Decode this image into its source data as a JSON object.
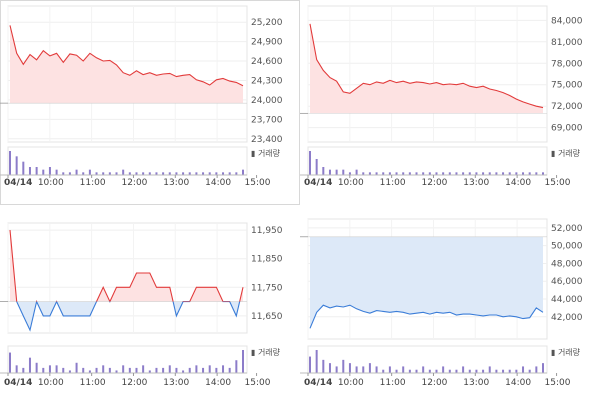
{
  "chart_data": [
    {
      "type": "line",
      "baseline": 23950,
      "ylim": [
        23350,
        25450
      ],
      "yticks": [
        "25,200",
        "24,900",
        "24,600",
        "24,300",
        "24,000",
        "23,700",
        "23,400"
      ],
      "ytick_values": [
        25200,
        24900,
        24600,
        24300,
        24000,
        23700,
        23400
      ],
      "x": [
        "09:00",
        "09:10",
        "09:20",
        "09:30",
        "09:40",
        "09:50",
        "10:00",
        "10:10",
        "10:20",
        "10:30",
        "10:40",
        "10:50",
        "11:00",
        "11:10",
        "11:20",
        "11:30",
        "11:40",
        "11:50",
        "12:00",
        "12:10",
        "12:20",
        "12:30",
        "12:40",
        "12:50",
        "13:00",
        "13:10",
        "13:20",
        "13:30",
        "13:40",
        "13:50",
        "14:00",
        "14:10",
        "14:20",
        "14:30",
        "14:40",
        "14:50"
      ],
      "values": [
        25150,
        24720,
        24550,
        24700,
        24620,
        24760,
        24680,
        24720,
        24580,
        24710,
        24690,
        24600,
        24720,
        24650,
        24600,
        24610,
        24540,
        24420,
        24380,
        24450,
        24390,
        24420,
        24380,
        24400,
        24410,
        24360,
        24380,
        24390,
        24310,
        24280,
        24230,
        24310,
        24330,
        24290,
        24270,
        24220
      ],
      "volume": [
        9,
        7,
        5,
        3,
        3,
        2,
        3,
        2,
        1,
        1,
        2,
        1,
        2,
        1,
        1,
        1,
        1,
        2,
        1,
        1,
        1,
        1,
        1,
        1,
        1,
        1,
        1,
        1,
        1,
        1,
        1,
        1,
        1,
        1,
        1,
        2
      ],
      "xticks": [
        "04/14",
        "10:00",
        "11:00",
        "12:00",
        "13:00",
        "14:00",
        "15:00"
      ],
      "volume_label": "거래량",
      "colors": {
        "up_line": "#e23b3b",
        "up_fill": "#fde2e2",
        "down_line": "#3b7dd8",
        "down_fill": "#dde9f8",
        "volume": "#8c7cc9"
      }
    },
    {
      "type": "line",
      "baseline": 71000,
      "ylim": [
        67000,
        86000
      ],
      "yticks": [
        "84,000",
        "81,000",
        "78,000",
        "75,000",
        "72,000",
        "69,000"
      ],
      "ytick_values": [
        84000,
        81000,
        78000,
        75000,
        72000,
        69000
      ],
      "x": [
        "09:00",
        "09:10",
        "09:20",
        "09:30",
        "09:40",
        "09:50",
        "10:00",
        "10:10",
        "10:20",
        "10:30",
        "10:40",
        "10:50",
        "11:00",
        "11:10",
        "11:20",
        "11:30",
        "11:40",
        "11:50",
        "12:00",
        "12:10",
        "12:20",
        "12:30",
        "12:40",
        "12:50",
        "13:00",
        "13:10",
        "13:20",
        "13:30",
        "13:40",
        "13:50",
        "14:00",
        "14:10",
        "14:20",
        "14:30",
        "14:40",
        "14:50"
      ],
      "values": [
        83500,
        78500,
        77000,
        76000,
        75500,
        74000,
        73800,
        74500,
        75200,
        75000,
        75400,
        75200,
        75600,
        75300,
        75500,
        75200,
        75400,
        75300,
        75100,
        75300,
        75000,
        75100,
        75000,
        75200,
        74800,
        74600,
        74800,
        74400,
        74200,
        73900,
        73500,
        73000,
        72600,
        72300,
        72000,
        71800
      ],
      "volume": [
        9,
        6,
        3,
        2,
        2,
        2,
        1,
        2,
        1,
        1,
        1,
        1,
        1,
        1,
        1,
        1,
        1,
        1,
        1,
        1,
        1,
        1,
        1,
        1,
        1,
        1,
        1,
        1,
        1,
        1,
        1,
        1,
        1,
        1,
        1,
        1
      ],
      "xticks": [
        "04/14",
        "10:00",
        "11:00",
        "12:00",
        "13:00",
        "14:00",
        "15:00"
      ],
      "volume_label": "거래량",
      "colors": {
        "up_line": "#e23b3b",
        "up_fill": "#fde2e2",
        "down_line": "#3b7dd8",
        "down_fill": "#dde9f8",
        "volume": "#8c7cc9"
      }
    },
    {
      "type": "line",
      "baseline": 11700,
      "ylim": [
        11590,
        11975
      ],
      "yticks": [
        "11,950",
        "11,850",
        "11,750",
        "11,650"
      ],
      "ytick_values": [
        11950,
        11850,
        11750,
        11650
      ],
      "x": [
        "09:00",
        "09:10",
        "09:20",
        "09:30",
        "09:40",
        "09:50",
        "10:00",
        "10:10",
        "10:20",
        "10:30",
        "10:40",
        "10:50",
        "11:00",
        "11:10",
        "11:20",
        "11:30",
        "11:40",
        "11:50",
        "12:00",
        "12:10",
        "12:20",
        "12:30",
        "12:40",
        "12:50",
        "13:00",
        "13:10",
        "13:20",
        "13:30",
        "13:40",
        "13:50",
        "14:00",
        "14:10",
        "14:20",
        "14:30",
        "14:40",
        "14:50"
      ],
      "values": [
        11950,
        11700,
        11650,
        11600,
        11700,
        11650,
        11650,
        11700,
        11650,
        11650,
        11650,
        11650,
        11650,
        11700,
        11750,
        11700,
        11750,
        11750,
        11750,
        11800,
        11800,
        11800,
        11750,
        11750,
        11750,
        11650,
        11700,
        11700,
        11750,
        11750,
        11750,
        11750,
        11700,
        11700,
        11650,
        11750
      ],
      "volume": [
        8,
        3,
        2,
        6,
        4,
        2,
        3,
        3,
        2,
        1,
        4,
        2,
        1,
        2,
        3,
        2,
        1,
        3,
        2,
        2,
        3,
        1,
        2,
        2,
        3,
        2,
        1,
        2,
        3,
        2,
        3,
        2,
        3,
        2,
        5,
        9
      ],
      "xticks": [
        "04/14",
        "10:00",
        "11:00",
        "12:00",
        "13:00",
        "14:00",
        "15:00"
      ],
      "volume_label": "거래량",
      "colors": {
        "up_line": "#e23b3b",
        "up_fill": "#fde2e2",
        "down_line": "#3b7dd8",
        "down_fill": "#dde9f8",
        "volume": "#8c7cc9"
      }
    },
    {
      "type": "line",
      "baseline": 51000,
      "ylim": [
        39500,
        53000
      ],
      "yticks": [
        "52,000",
        "50,000",
        "48,000",
        "46,000",
        "44,000",
        "42,000"
      ],
      "ytick_values": [
        52000,
        50000,
        48000,
        46000,
        44000,
        42000
      ],
      "x": [
        "09:00",
        "09:10",
        "09:20",
        "09:30",
        "09:40",
        "09:50",
        "10:00",
        "10:10",
        "10:20",
        "10:30",
        "10:40",
        "10:50",
        "11:00",
        "11:10",
        "11:20",
        "11:30",
        "11:40",
        "11:50",
        "12:00",
        "12:10",
        "12:20",
        "12:30",
        "12:40",
        "12:50",
        "13:00",
        "13:10",
        "13:20",
        "13:30",
        "13:40",
        "13:50",
        "14:00",
        "14:10",
        "14:20",
        "14:30",
        "14:40",
        "14:50"
      ],
      "values": [
        40700,
        42500,
        43300,
        43000,
        43200,
        43100,
        43300,
        42900,
        42600,
        42400,
        42700,
        42600,
        42500,
        42600,
        42500,
        42300,
        42400,
        42500,
        42300,
        42500,
        42400,
        42500,
        42200,
        42300,
        42300,
        42200,
        42100,
        42200,
        42200,
        42000,
        42100,
        42000,
        41800,
        41900,
        43000,
        42500
      ],
      "volume": [
        5,
        7,
        4,
        3,
        2,
        4,
        3,
        2,
        2,
        3,
        2,
        1,
        2,
        1,
        2,
        1,
        1,
        2,
        1,
        1,
        2,
        1,
        1,
        2,
        1,
        1,
        1,
        2,
        1,
        1,
        1,
        1,
        2,
        1,
        2,
        3
      ],
      "xticks": [
        "04/14",
        "10:00",
        "11:00",
        "12:00",
        "13:00",
        "14:00",
        "15:00"
      ],
      "volume_label": "거래량",
      "colors": {
        "up_line": "#e23b3b",
        "up_fill": "#fde2e2",
        "down_line": "#3b7dd8",
        "down_fill": "#dde9f8",
        "volume": "#8c7cc9"
      }
    }
  ]
}
